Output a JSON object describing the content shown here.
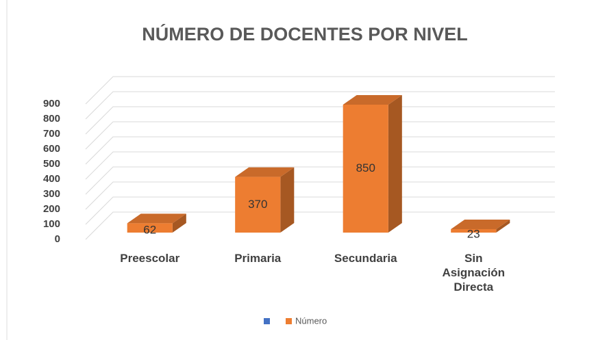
{
  "chart_data": {
    "type": "bar3d",
    "title": "NÚMERO DE DOCENTES POR NIVEL",
    "categories": [
      "Preescolar",
      "Primaria",
      "Secundaria",
      "Sin Asignación Directa"
    ],
    "series": [
      {
        "name": null,
        "color": "#4472c4",
        "values": [
          null,
          null,
          null,
          null
        ]
      },
      {
        "name": "Número",
        "color": "#ed7d31",
        "values": [
          62,
          370,
          850,
          23
        ]
      }
    ],
    "ylim": [
      0,
      900
    ],
    "yticks": [
      0,
      100,
      200,
      300,
      400,
      500,
      600,
      700,
      800,
      900
    ],
    "grid": true
  }
}
